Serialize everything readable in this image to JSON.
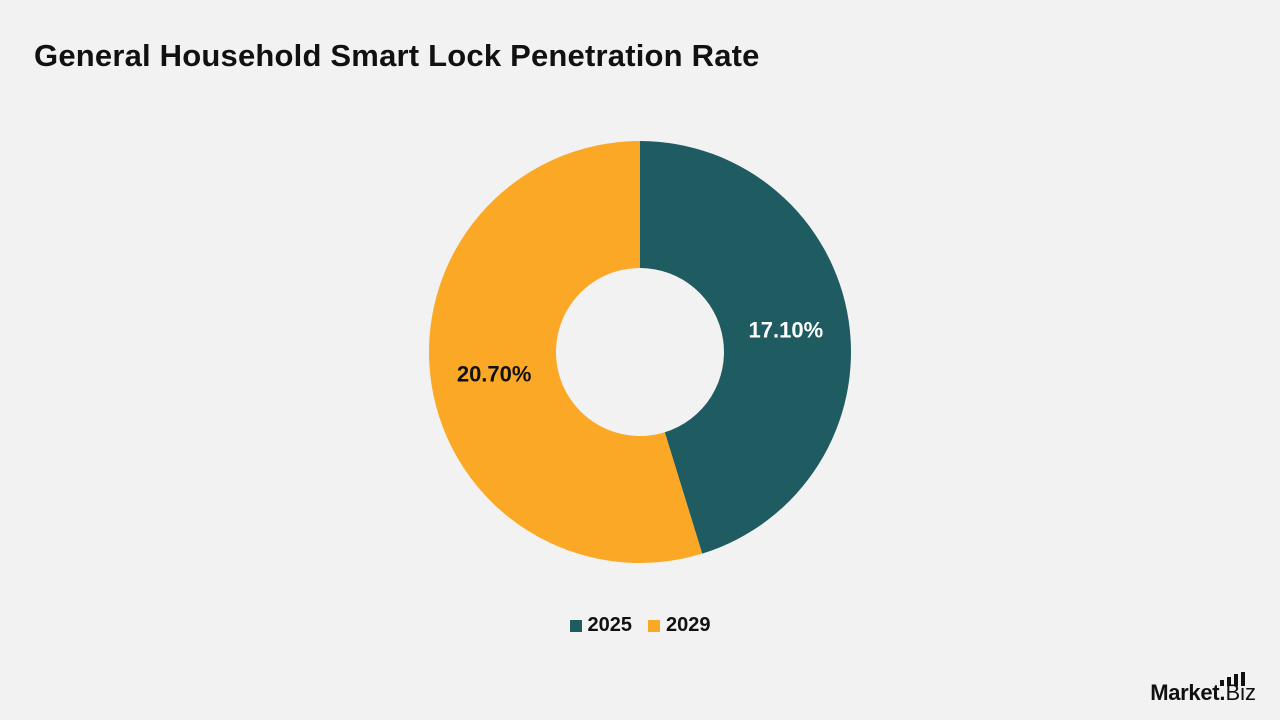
{
  "page": {
    "title": "General Household Smart Lock Penetration Rate",
    "brand": {
      "mark": "Market",
      "dot": ".",
      "suffix": "Biz"
    }
  },
  "colors": {
    "background": "#f2f2f2",
    "series_2025": "#1f5c61",
    "series_2029": "#fba826"
  },
  "chart_data": {
    "type": "pie",
    "variant": "donut",
    "title": "General Household Smart Lock Penetration Rate",
    "legend_position": "bottom",
    "start_angle_deg": 0,
    "direction": "clockwise",
    "slices": [
      {
        "name": "2025",
        "value": 17.1,
        "label": "17.10%",
        "color": "#1f5c61",
        "label_color": "#ffffff"
      },
      {
        "name": "2029",
        "value": 20.7,
        "label": "20.70%",
        "color": "#fba826",
        "label_color": "#111111"
      }
    ]
  }
}
